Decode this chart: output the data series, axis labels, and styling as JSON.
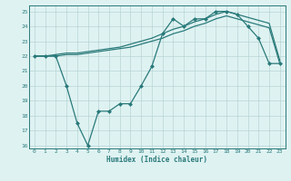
{
  "xlabel": "Humidex (Indice chaleur)",
  "xlim": [
    -0.5,
    23.5
  ],
  "ylim": [
    15.8,
    25.4
  ],
  "xticks": [
    0,
    1,
    2,
    3,
    4,
    5,
    6,
    7,
    8,
    9,
    10,
    11,
    12,
    13,
    14,
    15,
    16,
    17,
    18,
    19,
    20,
    21,
    22,
    23
  ],
  "yticks": [
    16,
    17,
    18,
    19,
    20,
    21,
    22,
    23,
    24,
    25
  ],
  "bg_color": "#dff2f2",
  "grid_color": "#b8d4d4",
  "line_color": "#2a7a7a",
  "smooth1_x": [
    0,
    1,
    2,
    3,
    4,
    5,
    6,
    7,
    8,
    9,
    10,
    11,
    12,
    13,
    14,
    15,
    16,
    17,
    18,
    19,
    20,
    21,
    22,
    23
  ],
  "smooth1_y": [
    22.0,
    22.0,
    22.1,
    22.2,
    22.2,
    22.3,
    22.4,
    22.5,
    22.6,
    22.8,
    23.0,
    23.2,
    23.5,
    23.8,
    24.0,
    24.3,
    24.5,
    24.8,
    25.0,
    24.8,
    24.6,
    24.4,
    24.2,
    21.7
  ],
  "smooth2_x": [
    0,
    1,
    2,
    3,
    4,
    5,
    6,
    7,
    8,
    9,
    10,
    11,
    12,
    13,
    14,
    15,
    16,
    17,
    18,
    19,
    20,
    21,
    22,
    23
  ],
  "smooth2_y": [
    22.0,
    22.0,
    22.0,
    22.1,
    22.1,
    22.2,
    22.3,
    22.4,
    22.5,
    22.6,
    22.8,
    23.0,
    23.2,
    23.5,
    23.7,
    24.0,
    24.2,
    24.5,
    24.7,
    24.5,
    24.3,
    24.1,
    23.9,
    21.5
  ],
  "jagged_x": [
    0,
    1,
    2,
    3,
    4,
    5,
    6,
    7,
    8,
    9,
    10,
    11,
    12,
    13,
    14,
    15,
    16,
    17,
    18,
    19,
    20,
    21,
    22,
    23
  ],
  "jagged_y": [
    22.0,
    22.0,
    22.0,
    20.0,
    17.5,
    16.0,
    18.3,
    18.3,
    18.8,
    18.8,
    20.0,
    21.3,
    23.5,
    24.5,
    24.0,
    24.5,
    24.5,
    25.0,
    25.0,
    24.8,
    24.0,
    23.2,
    21.5,
    21.5
  ]
}
